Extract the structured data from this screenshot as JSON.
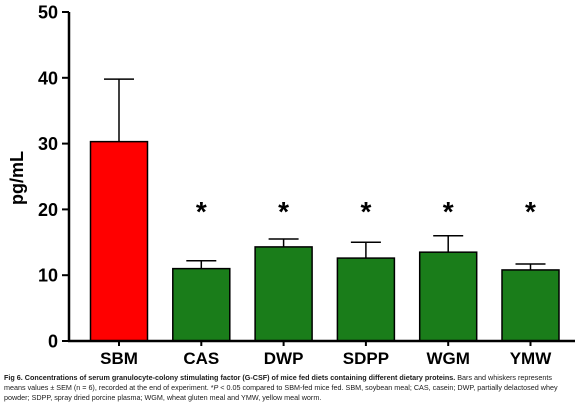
{
  "chart_data": {
    "type": "bar",
    "title": "",
    "xlabel": "",
    "ylabel": "pg/mL",
    "categories": [
      "SBM",
      "CAS",
      "DWP",
      "SDPP",
      "WGM",
      "YMW"
    ],
    "values": [
      30.3,
      11.0,
      14.3,
      12.6,
      13.5,
      10.8
    ],
    "sem": [
      9.5,
      1.2,
      1.2,
      2.4,
      2.5,
      0.9
    ],
    "annotations": [
      "",
      "*",
      "*",
      "*",
      "*",
      "*"
    ],
    "ylim": [
      0,
      50
    ],
    "yticks": [
      "0",
      "10",
      "20",
      "30",
      "40",
      "50"
    ],
    "bar_colors": [
      "#ff0000",
      "#1a7d1a",
      "#1a7d1a",
      "#1a7d1a",
      "#1a7d1a",
      "#1a7d1a"
    ],
    "outline_color": "#000000",
    "grid": false,
    "legend": "none"
  },
  "caption": {
    "title": "Fig 6. Concentrations of serum granulocyte-colony stimulating factor (G-CSF) of mice fed diets containing different dietary proteins.",
    "text_1": "Bars and whiskers represents means values ± SEM (n = 6), recorded at the end of experiment. *",
    "text_2": "P",
    "text_3": " < 0.05 compared to SBM-fed mice fed. SBM, soybean meal; CAS, casein; DWP, partially delactosed whey powder; SDPP, spray dried porcine plasma; WGM, wheat gluten meal and YMW, yellow meal worm."
  }
}
